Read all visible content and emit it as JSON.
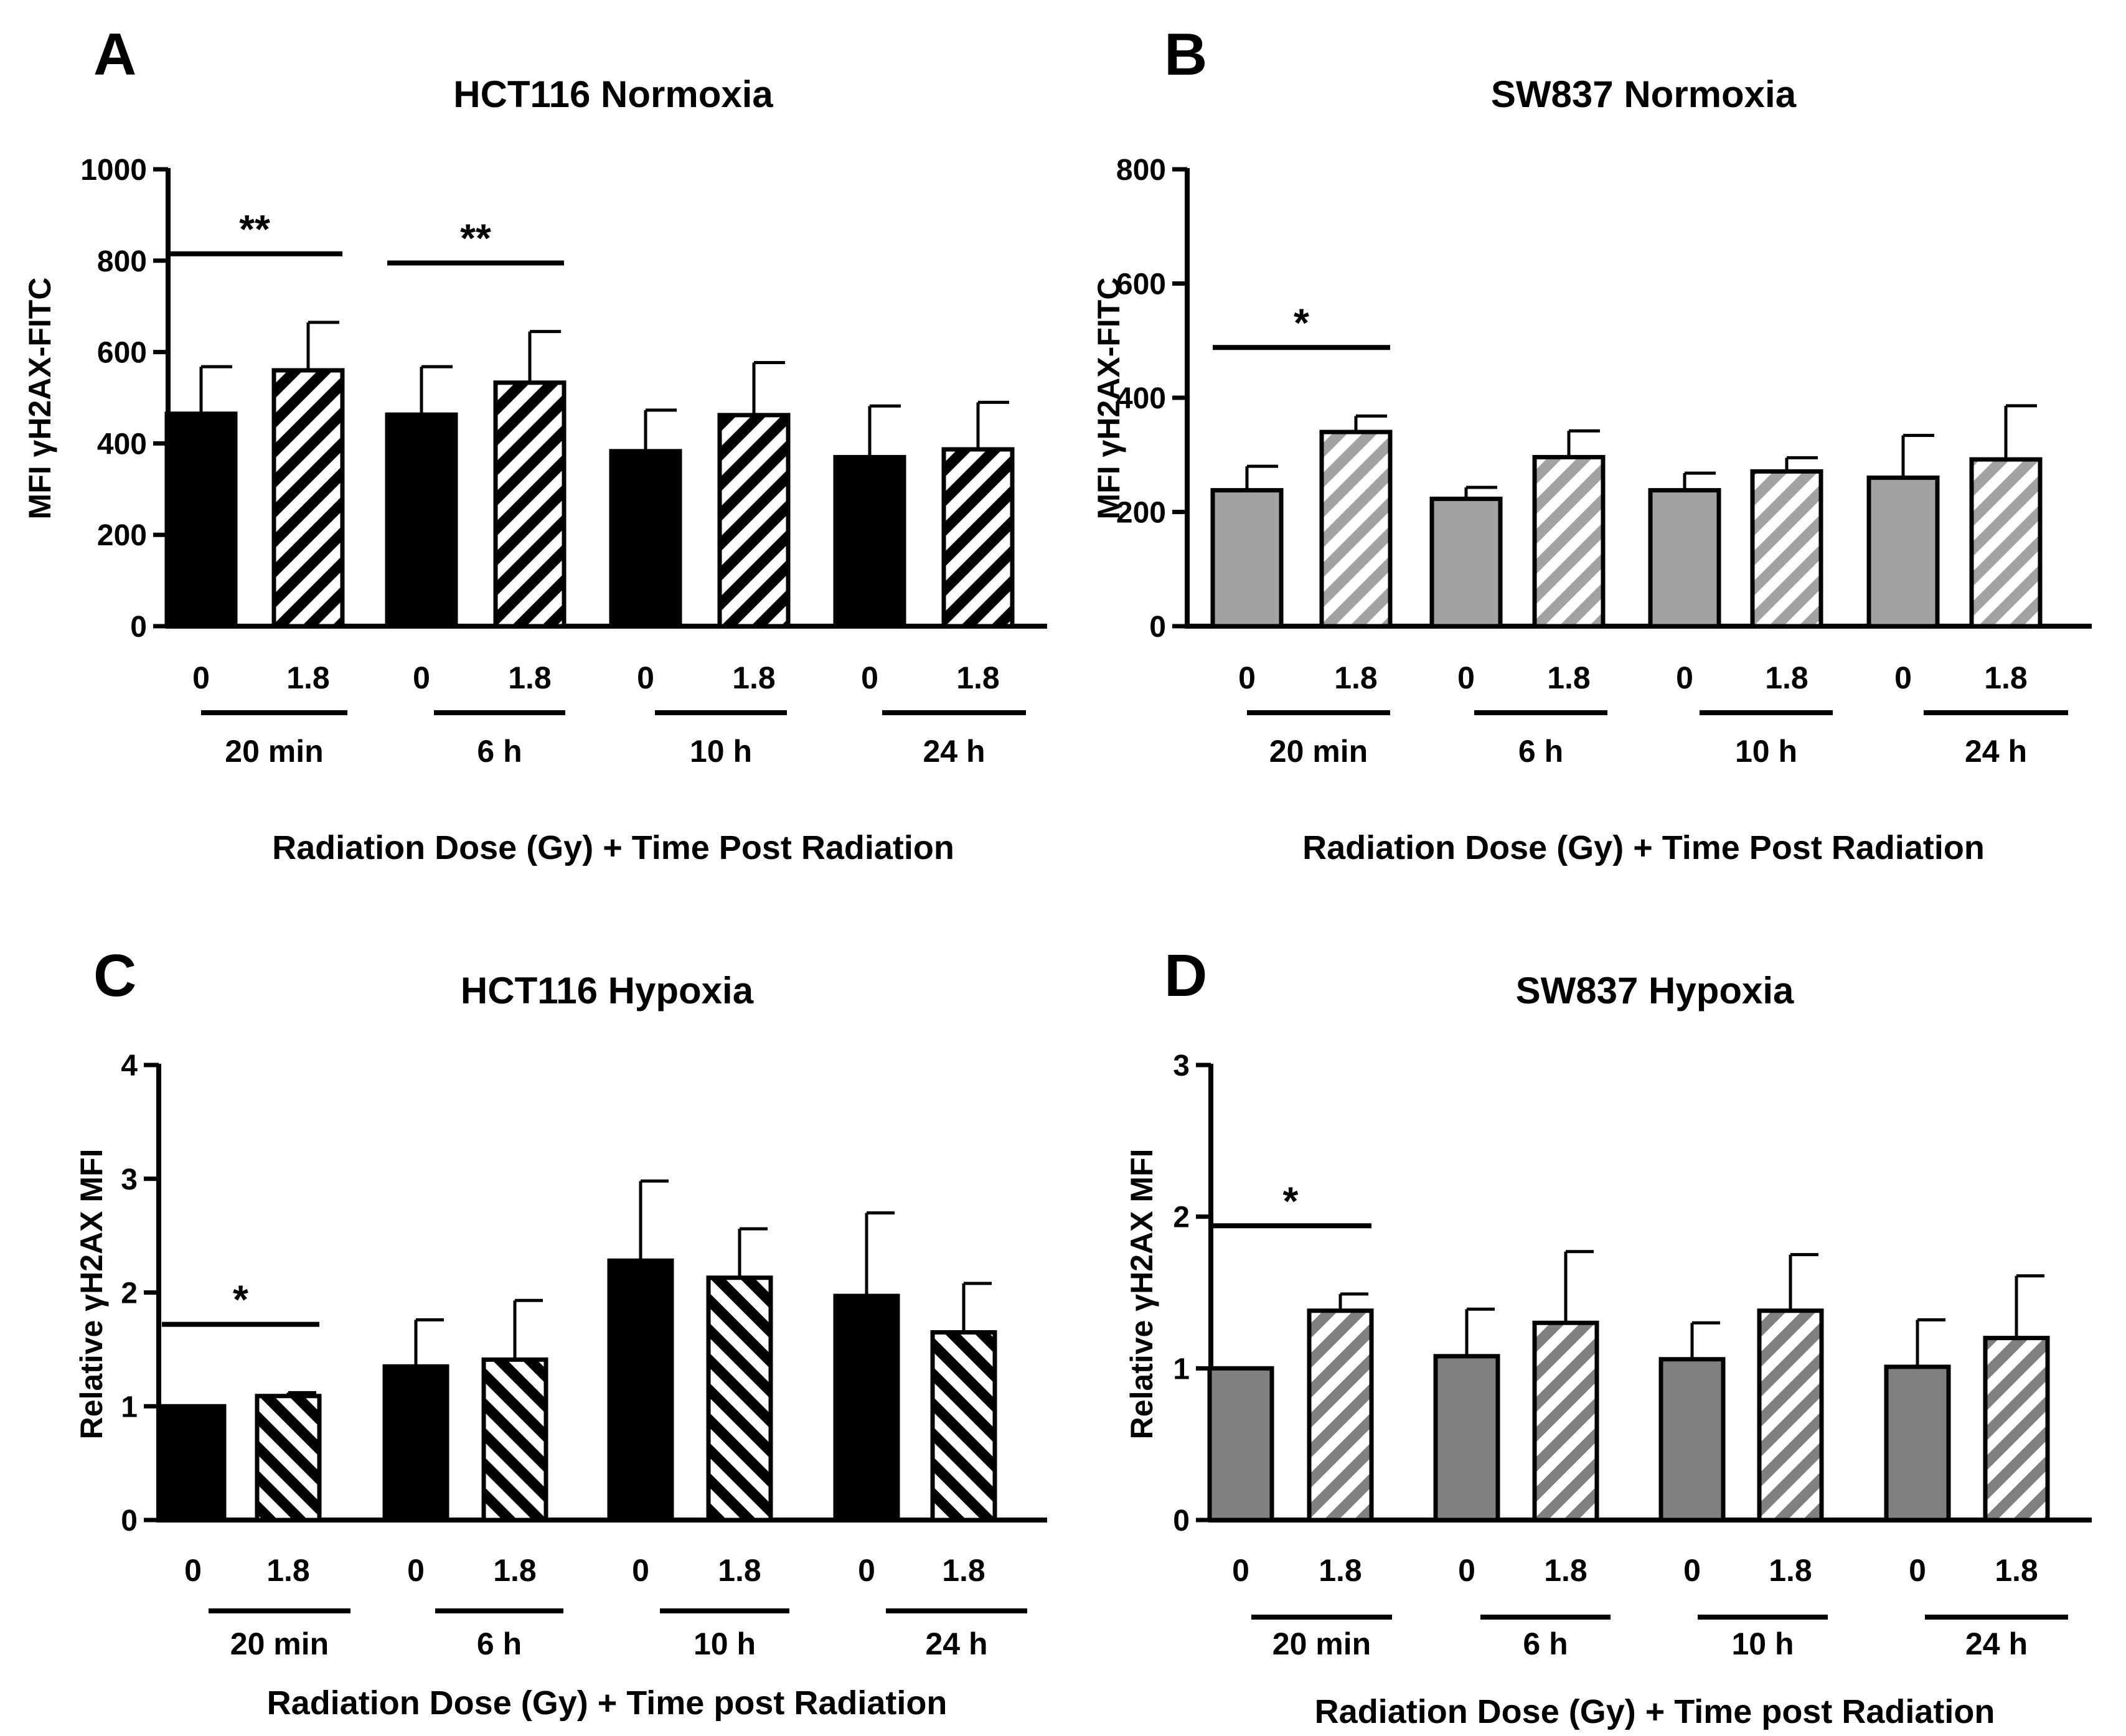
{
  "hatch": {
    "black": "#000000",
    "grey": "#a2a2a2",
    "darkgrey": "#808080"
  },
  "chart_data": [
    {
      "panel": "A",
      "type": "bar",
      "title": "HCT116 Normoxia",
      "ylabel": "MFI γH2AX-FITC",
      "xlabel": "Radiation Dose (Gy) + Time Post Radiation",
      "ylim": [
        0,
        1000
      ],
      "yticks": [
        "0",
        "200",
        "400",
        "600",
        "800",
        "1000"
      ],
      "ytick_values": [
        0,
        200,
        400,
        600,
        800,
        1000
      ],
      "dose_labels": [
        "0",
        "1.8"
      ],
      "groups": [
        "20 min",
        "6 h",
        "10 h",
        "24 h"
      ],
      "values": [
        465,
        560,
        463,
        533,
        383,
        462,
        370,
        387
      ],
      "errors": [
        103,
        105,
        105,
        112,
        90,
        115,
        112,
        103
      ],
      "fill_color": "#000000",
      "hatch_style": "forward",
      "significance": [
        {
          "group": 0,
          "label": "**"
        },
        {
          "group": 1,
          "label": "**"
        }
      ]
    },
    {
      "panel": "B",
      "type": "bar",
      "title": "SW837 Normoxia",
      "ylabel": "MFI γH2AX-FITC",
      "xlabel": "Radiation Dose (Gy) + Time Post Radiation",
      "ylim": [
        0,
        800
      ],
      "yticks": [
        "0",
        "200",
        "400",
        "600",
        "800"
      ],
      "ytick_values": [
        0,
        200,
        400,
        600,
        800
      ],
      "dose_labels": [
        "0",
        "1.8"
      ],
      "groups": [
        "20 min",
        "6 h",
        "10 h",
        "24 h"
      ],
      "values": [
        238,
        340,
        223,
        296,
        238,
        271,
        260,
        292
      ],
      "errors": [
        42,
        28,
        20,
        46,
        30,
        24,
        74,
        94
      ],
      "fill_color": "#a2a2a2",
      "hatch_style": "forward",
      "significance": [
        {
          "group": 0,
          "label": "*"
        }
      ]
    },
    {
      "panel": "C",
      "type": "bar",
      "title": "HCT116 Hypoxia",
      "ylabel": "Relative γH2AX MFI",
      "xlabel": "Radiation Dose (Gy) + Time post Radiation",
      "ylim": [
        0,
        4
      ],
      "yticks": [
        "0",
        "1",
        "2",
        "3",
        "4"
      ],
      "ytick_values": [
        0,
        1,
        2,
        3,
        4
      ],
      "dose_labels": [
        "0",
        "1.8"
      ],
      "groups": [
        "20 min",
        "6 h",
        "10 h",
        "24 h"
      ],
      "values": [
        1.0,
        1.09,
        1.35,
        1.41,
        2.28,
        2.13,
        1.97,
        1.65
      ],
      "errors": [
        0.0,
        0.03,
        0.41,
        0.52,
        0.7,
        0.43,
        0.73,
        0.43
      ],
      "fill_color": "#000000",
      "hatch_style": "backward",
      "significance": [
        {
          "group": 0,
          "label": "*"
        }
      ]
    },
    {
      "panel": "D",
      "type": "bar",
      "title": "SW837 Hypoxia",
      "ylabel": "Relative γH2AX MFI",
      "xlabel": "Radiation Dose (Gy) + Time post Radiation",
      "ylim": [
        0,
        3
      ],
      "yticks": [
        "0",
        "1",
        "2",
        "3"
      ],
      "ytick_values": [
        0,
        1,
        2,
        3
      ],
      "dose_labels": [
        "0",
        "1.8"
      ],
      "groups": [
        "20 min",
        "6 h",
        "10 h",
        "24 h"
      ],
      "values": [
        1.0,
        1.38,
        1.08,
        1.3,
        1.06,
        1.38,
        1.01,
        1.2
      ],
      "errors": [
        0.0,
        0.11,
        0.31,
        0.47,
        0.24,
        0.37,
        0.31,
        0.41
      ],
      "fill_color": "#808080",
      "hatch_style": "forward",
      "significance": [
        {
          "group": 0,
          "label": "*"
        }
      ]
    }
  ]
}
